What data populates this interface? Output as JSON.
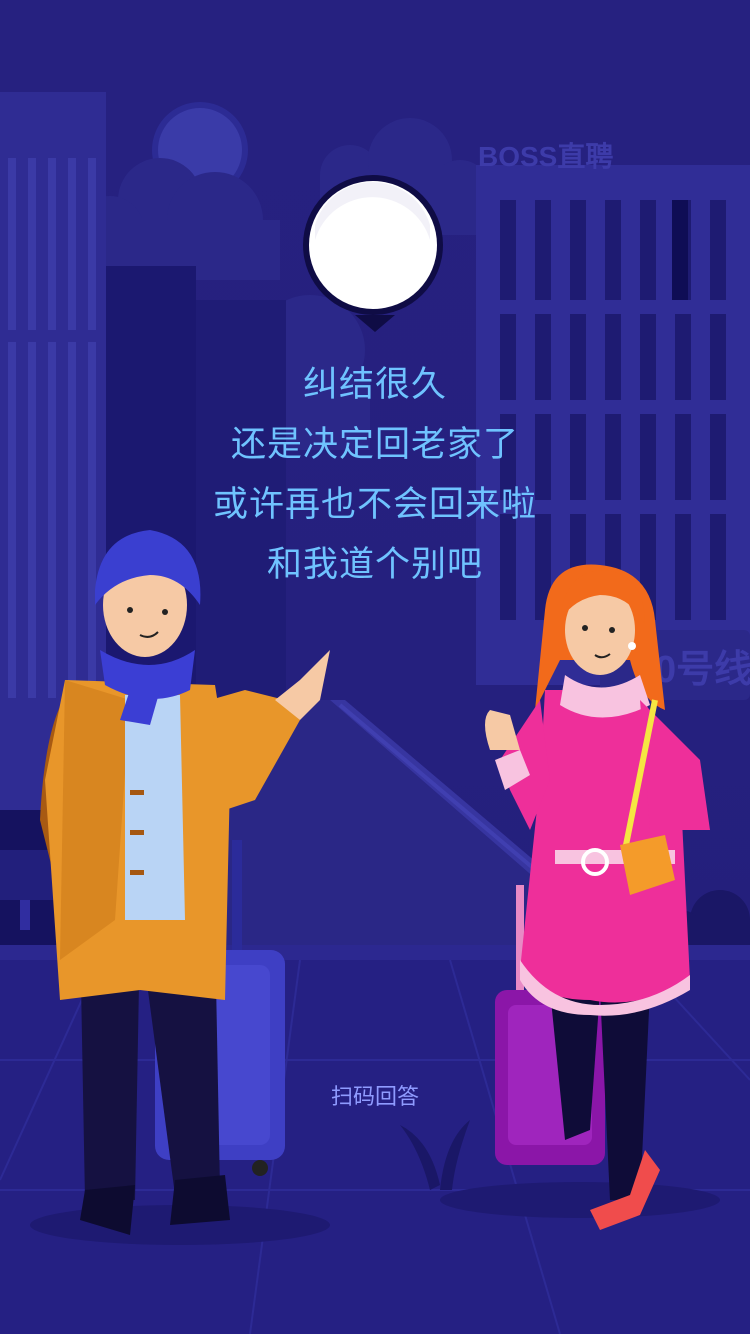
{
  "scene": {
    "building_sign": "BOSS直聘",
    "platform_sign": "0号线"
  },
  "message": {
    "lines": [
      "纠结很久",
      "还是决定回老家了",
      "或许再也不会回来啦",
      "和我道个别吧"
    ]
  },
  "actions": {
    "scan_label": "扫码回答"
  },
  "colors": {
    "background": "#25207e",
    "message_text": "#6fc3ff",
    "link_text": "#8f9bff",
    "avatar_bubble": "#ffffff",
    "coat_man": "#e8962a",
    "coat_woman": "#ee2f9a",
    "suitcase_man": "#3e3fc4",
    "suitcase_woman": "#8b16a8"
  }
}
